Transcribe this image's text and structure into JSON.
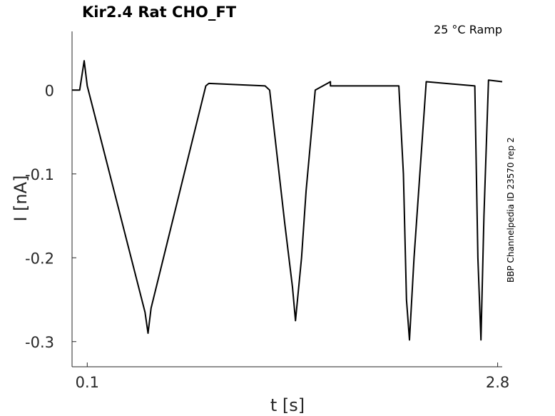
{
  "chart_data": {
    "type": "line",
    "title": "Kir2.4  Rat  CHO_FT",
    "annotation": "25 °C  Ramp",
    "side_label": "BBP Channelpedia ID 23570 rep 2",
    "xlabel": "t [s]",
    "ylabel": "I [nA]",
    "xlim": [
      0.0,
      2.83
    ],
    "ylim": [
      -0.33,
      0.07
    ],
    "x_ticks": [
      0.1,
      2.8
    ],
    "x_tick_labels": [
      "0.1",
      "2.8"
    ],
    "y_ticks": [
      0,
      -0.1,
      -0.2,
      -0.3
    ],
    "y_tick_labels": [
      "0",
      "-0.1",
      "-0.2",
      "-0.3"
    ],
    "grid": false,
    "line_color": "#000000",
    "series": [
      {
        "x": [
          0.0,
          0.05,
          0.08,
          0.1,
          0.48,
          0.5,
          0.52,
          0.88,
          0.9,
          1.27,
          1.3,
          1.4,
          1.45,
          1.47,
          1.51,
          1.54,
          1.6,
          1.65,
          1.68,
          1.7,
          1.7,
          1.71,
          2.15,
          2.18,
          2.2,
          2.22,
          2.25,
          2.33,
          2.65,
          2.67,
          2.69,
          2.71,
          2.74,
          2.83
        ],
        "y": [
          0.0,
          0.0,
          0.035,
          0.005,
          -0.265,
          -0.29,
          -0.26,
          0.005,
          0.008,
          0.005,
          0.0,
          -0.16,
          -0.235,
          -0.275,
          -0.2,
          -0.12,
          0.0,
          0.005,
          0.008,
          0.01,
          0.005,
          0.005,
          0.005,
          -0.1,
          -0.25,
          -0.298,
          -0.2,
          0.01,
          0.005,
          -0.2,
          -0.298,
          -0.15,
          0.012,
          0.01
        ]
      }
    ]
  }
}
